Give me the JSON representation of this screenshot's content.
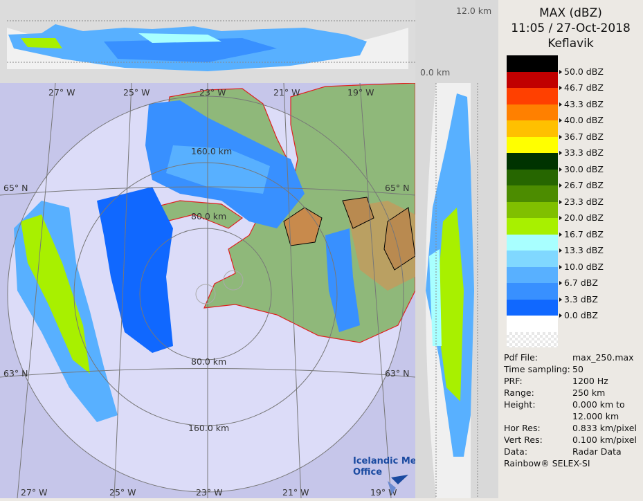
{
  "header": {
    "product": "MAX (dBZ)",
    "datetime": "11:05 / 27-Oct-2018",
    "site": "Keflavik"
  },
  "legend": {
    "colors": [
      "#000000",
      "#c00000",
      "#ff4000",
      "#ff8000",
      "#ffc000",
      "#ffff00",
      "#003300",
      "#266600",
      "#4c8c00",
      "#80c000",
      "#a8f000",
      "#a8ffff",
      "#80d8ff",
      "#58b0ff",
      "#3890ff",
      "#1068ff",
      "#ffffff"
    ],
    "labels": [
      "50.0 dBZ",
      "46.7 dBZ",
      "43.3 dBZ",
      "40.0 dBZ",
      "36.7 dBZ",
      "33.3 dBZ",
      "30.0 dBZ",
      "26.7 dBZ",
      "23.3 dBZ",
      "20.0 dBZ",
      "16.7 dBZ",
      "13.3 dBZ",
      "10.0 dBZ",
      "6.7 dBZ",
      "3.3 dBZ",
      "0.0 dBZ"
    ]
  },
  "info": [
    {
      "key": "Pdf File:",
      "value": "max_250.max"
    },
    {
      "key": "Time sampling:",
      "value": "50"
    },
    {
      "key": "PRF:",
      "value": "1200 Hz"
    },
    {
      "key": "Range:",
      "value": "250 km"
    },
    {
      "key": "Height:",
      "value": "0.000 km to"
    },
    {
      "key": "",
      "value": "12.000 km"
    },
    {
      "key": "Hor Res:",
      "value": "0.833 km/pixel"
    },
    {
      "key": "Vert Res:",
      "value": "0.100 km/pixel"
    },
    {
      "key": "Data:",
      "value": "Radar Data"
    }
  ],
  "footer": "Rainbow® SELEX-SI",
  "cross_section": {
    "top_label": "12.0 km",
    "bottom_label": "0.0 km"
  },
  "map": {
    "longitudes_top": [
      "27° W",
      "25° W",
      "23° W",
      "21° W",
      "19° W"
    ],
    "longitudes_bottom": [
      "27° W",
      "25° W",
      "23° W",
      "21° W",
      "19° W"
    ],
    "lat_labels": [
      "65° N",
      "65° N",
      "63° N",
      "63° N"
    ],
    "range_labels": [
      "160.0 km",
      "80.0 km",
      "80.0 km",
      "160.0 km"
    ],
    "logo": "Icelandic Met Office"
  }
}
